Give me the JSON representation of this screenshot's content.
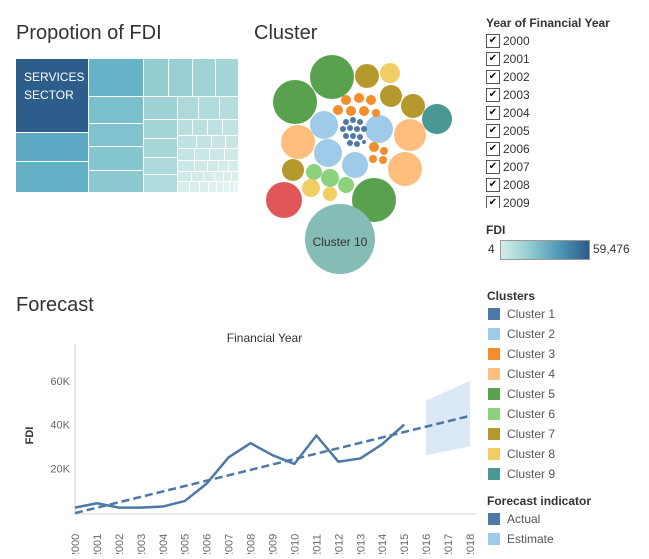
{
  "treemap": {
    "title": "Propotion of FDI",
    "top_label_line1": "SERVICES",
    "top_label_line2": "SECTOR"
  },
  "cluster_chart": {
    "title": "Cluster",
    "big_label": "Cluster 10"
  },
  "filter": {
    "title": "Year of Financial Year",
    "years": [
      "2000",
      "2001",
      "2002",
      "2003",
      "2004",
      "2005",
      "2006",
      "2007",
      "2008",
      "2009"
    ],
    "check_glyph": "✔"
  },
  "fdi_scale": {
    "title": "FDI",
    "min": "4",
    "max": "59,476"
  },
  "clusters_legend": {
    "title": "Clusters",
    "items": [
      {
        "label": "Cluster 1",
        "color": "#4e79a7"
      },
      {
        "label": "Cluster 2",
        "color": "#a0cbe8"
      },
      {
        "label": "Cluster 3",
        "color": "#f28e2b"
      },
      {
        "label": "Cluster 4",
        "color": "#ffbe7d"
      },
      {
        "label": "Cluster 5",
        "color": "#59a14f"
      },
      {
        "label": "Cluster 6",
        "color": "#8cd17d"
      },
      {
        "label": "Cluster 7",
        "color": "#b6992d"
      },
      {
        "label": "Cluster 8",
        "color": "#f1ce63"
      },
      {
        "label": "Cluster 9",
        "color": "#499894"
      }
    ]
  },
  "forecast_legend": {
    "title": "Forecast indicator",
    "items": [
      {
        "label": "Actual",
        "color": "#4e79a7"
      },
      {
        "label": "Estimate",
        "color": "#a0cbe8"
      }
    ]
  },
  "forecast": {
    "title": "Forecast"
  },
  "chart_data": {
    "type": "line",
    "title": "Financial Year",
    "xlabel": "",
    "ylabel": "FDI",
    "x": [
      "2000",
      "2001",
      "2002",
      "2003",
      "2004",
      "2005",
      "2006",
      "2007",
      "2008",
      "2009",
      "2010",
      "2011",
      "2012",
      "2013",
      "2014",
      "2015",
      "2016",
      "2017",
      "2018"
    ],
    "ylim": [
      0,
      70000
    ],
    "ytick_labels": [
      "20K",
      "40K",
      "60K"
    ],
    "ytick_values": [
      20000,
      40000,
      60000
    ],
    "series": [
      {
        "name": "Actual",
        "x": [
          2000,
          2001,
          2002,
          2003,
          2004,
          2005,
          2006,
          2007,
          2008,
          2009,
          2010,
          2011,
          2012,
          2013,
          2014,
          2015
        ],
        "values": [
          2000,
          4000,
          2000,
          2000,
          2500,
          5000,
          13000,
          25000,
          31500,
          26000,
          22000,
          35000,
          23000,
          24500,
          31000,
          40000
        ]
      },
      {
        "name": "Trend",
        "x": [
          2000,
          2018
        ],
        "values": [
          -500,
          44000
        ]
      },
      {
        "name": "Estimate",
        "x": [
          2016,
          2017,
          2018
        ],
        "upper": [
          51000,
          55500,
          60000
        ],
        "lower": [
          26000,
          28000,
          30000
        ]
      }
    ],
    "grid": false,
    "colors": {
      "actual": "#4e79a7",
      "trend": "#4e79a7",
      "band": "#dbe9f6"
    }
  }
}
